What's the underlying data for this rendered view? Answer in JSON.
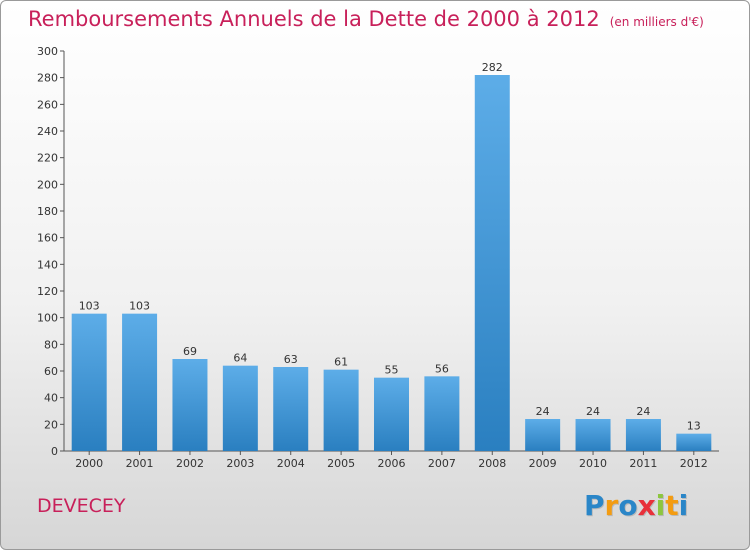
{
  "header": {
    "title": "Remboursements Annuels de la Dette de 2000 à 2012",
    "subtitle": "(en milliers d'€)"
  },
  "footer": {
    "place": "DEVECEY",
    "logo_letters": [
      "P",
      "r",
      "o",
      "x",
      "i",
      "t",
      "i"
    ],
    "logo_colors": [
      "#2a86c8",
      "#f39c12",
      "#2a86c8",
      "#e8303a",
      "#8dc63f",
      "#f39c12",
      "#2a86c8"
    ]
  },
  "colors": {
    "bar_top": "#5dade8",
    "bar_bottom": "#2a7fc0",
    "axis": "#555555",
    "title": "#c8205a"
  },
  "chart_data": {
    "type": "bar",
    "title": "Remboursements Annuels de la Dette de 2000 à 2012",
    "subtitle": "(en milliers d'€)",
    "categories": [
      "2000",
      "2001",
      "2002",
      "2003",
      "2004",
      "2005",
      "2006",
      "2007",
      "2008",
      "2009",
      "2010",
      "2011",
      "2012"
    ],
    "values": [
      103,
      103,
      69,
      64,
      63,
      61,
      55,
      56,
      282,
      24,
      24,
      24,
      13
    ],
    "ylim": [
      0,
      300
    ],
    "yticks": [
      0,
      20,
      40,
      60,
      80,
      100,
      120,
      140,
      160,
      180,
      200,
      220,
      240,
      260,
      280,
      300
    ],
    "grid": false,
    "data_labels": true
  }
}
